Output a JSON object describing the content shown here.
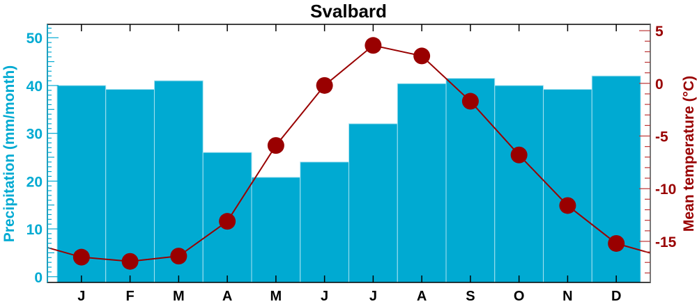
{
  "chart_data": {
    "type": "bar+line",
    "title": "Svalbard",
    "categories": [
      "J",
      "F",
      "M",
      "A",
      "M",
      "J",
      "J",
      "A",
      "S",
      "O",
      "N",
      "D"
    ],
    "series": [
      {
        "name": "Precipitation",
        "kind": "bar",
        "axis": "left",
        "color": "#00AAD2",
        "values": [
          40.0,
          39.2,
          41.0,
          26.0,
          20.8,
          24.0,
          32.0,
          40.4,
          41.5,
          40.0,
          39.2,
          42.0
        ]
      },
      {
        "name": "Mean temperature",
        "kind": "line",
        "axis": "right",
        "color": "#990000",
        "values": [
          -16.5,
          -16.9,
          -16.4,
          -13.1,
          -5.9,
          -0.2,
          3.6,
          2.6,
          -1.7,
          -6.8,
          -11.6,
          -15.2
        ]
      }
    ],
    "ylabel": "Precipitation (mm/month)",
    "y2label": "Mean temperature (°C)",
    "ylim": [
      -1.2,
      52.8
    ],
    "y2lim": [
      -18.9,
      5.6
    ],
    "yticks": [
      "0",
      "10",
      "20",
      "30",
      "40",
      "50"
    ],
    "y2ticks": [
      "5",
      "0",
      "-5",
      "-10",
      "-15"
    ],
    "grid": false
  }
}
